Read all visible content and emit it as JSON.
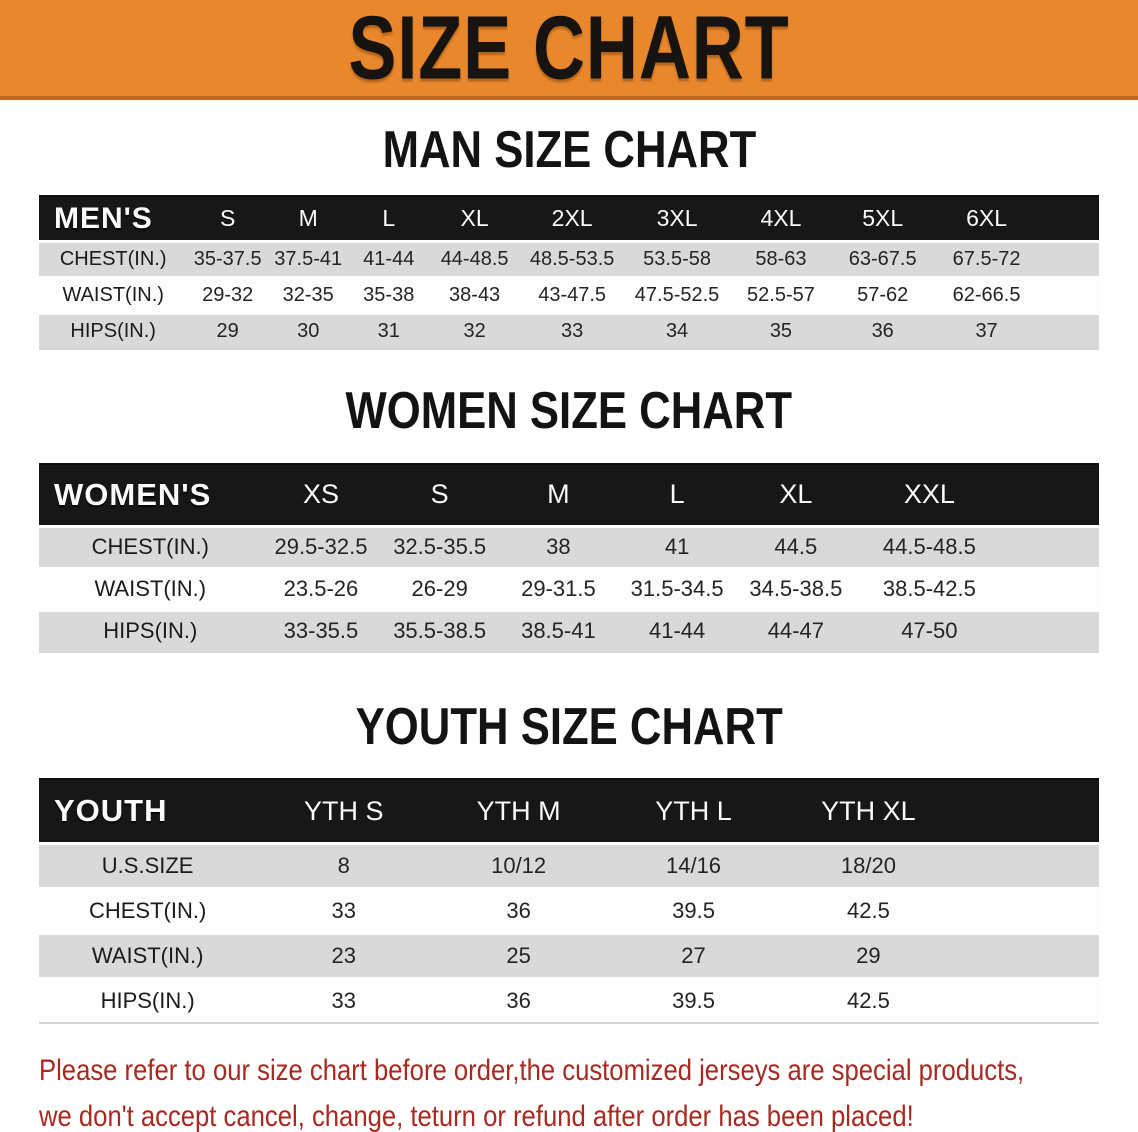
{
  "banner": {
    "title": "SIZE CHART",
    "bg_color": "#E8872B",
    "edge_color": "#C2671C",
    "text_color": "#171310"
  },
  "colors": {
    "header_band": "#171717",
    "stripe_gray": "#D9D9D9",
    "disclaimer_red": "#A8291F"
  },
  "sections": [
    {
      "heading": "MAN SIZE CHART",
      "header_label": "MEN'S",
      "columns": [
        "S",
        "M",
        "L",
        "XL",
        "2XL",
        "3XL",
        "4XL",
        "5XL",
        "6XL"
      ],
      "rows": [
        {
          "label": "CHEST(IN.)",
          "values": [
            "35-37.5",
            "37.5-41",
            "41-44",
            "44-48.5",
            "48.5-53.5",
            "53.5-58",
            "58-63",
            "63-67.5",
            "67.5-72"
          ]
        },
        {
          "label": "WAIST(IN.)",
          "values": [
            "29-32",
            "32-35",
            "35-38",
            "38-43",
            "43-47.5",
            "47.5-52.5",
            "52.5-57",
            "57-62",
            "62-66.5"
          ]
        },
        {
          "label": "HIPS(IN.)",
          "values": [
            "29",
            "30",
            "31",
            "32",
            "33",
            "34",
            "35",
            "36",
            "37"
          ]
        }
      ]
    },
    {
      "heading": "WOMEN SIZE CHART",
      "header_label": "WOMEN'S",
      "columns": [
        "XS",
        "S",
        "M",
        "L",
        "XL",
        "XXL"
      ],
      "rows": [
        {
          "label": "CHEST(IN.)",
          "values": [
            "29.5-32.5",
            "32.5-35.5",
            "38",
            "41",
            "44.5",
            "44.5-48.5"
          ]
        },
        {
          "label": "WAIST(IN.)",
          "values": [
            "23.5-26",
            "26-29",
            "29-31.5",
            "31.5-34.5",
            "34.5-38.5",
            "38.5-42.5"
          ]
        },
        {
          "label": "HIPS(IN.)",
          "values": [
            "33-35.5",
            "35.5-38.5",
            "38.5-41",
            "41-44",
            "44-47",
            "47-50"
          ]
        }
      ]
    },
    {
      "heading": "YOUTH SIZE CHART",
      "header_label": "YOUTH",
      "columns": [
        "YTH S",
        "YTH M",
        "YTH L",
        "YTH XL"
      ],
      "rows": [
        {
          "label": "U.S.SIZE",
          "values": [
            "8",
            "10/12",
            "14/16",
            "18/20"
          ]
        },
        {
          "label": "CHEST(IN.)",
          "values": [
            "33",
            "36",
            "39.5",
            "42.5"
          ]
        },
        {
          "label": "WAIST(IN.)",
          "values": [
            "23",
            "25",
            "27",
            "29"
          ]
        },
        {
          "label": "HIPS(IN.)",
          "values": [
            "33",
            "36",
            "39.5",
            "42.5"
          ]
        }
      ]
    }
  ],
  "disclaimer": {
    "line1": "Please refer to our size chart before order,the customized jerseys are special products,",
    "line2": "we don't accept cancel, change, teturn or refund after order has been placed!"
  }
}
